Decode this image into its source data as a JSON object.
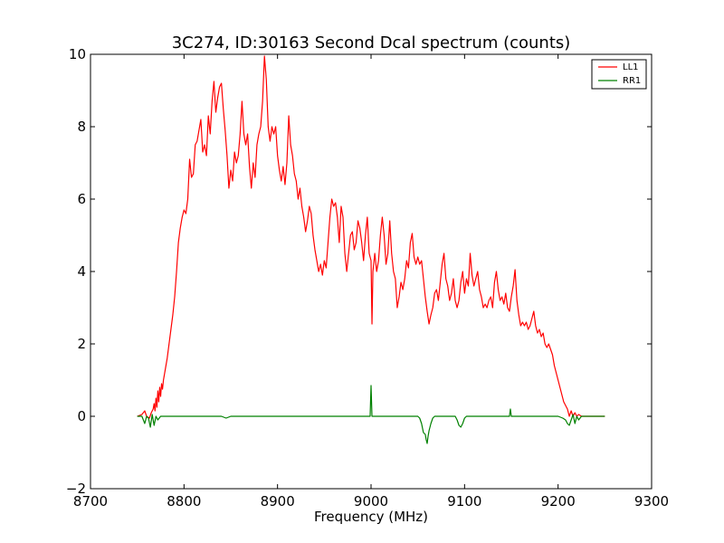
{
  "chart_data": {
    "type": "line",
    "title": "3C274, ID:30163 Second Dcal spectrum (counts)",
    "xlabel": "Frequency (MHz)",
    "ylabel": "",
    "xlim": [
      8700,
      9300
    ],
    "ylim": [
      -2,
      10
    ],
    "x_ticks": [
      8700,
      8800,
      8900,
      9000,
      9100,
      9200,
      9300
    ],
    "y_ticks": [
      -2,
      0,
      2,
      4,
      6,
      8,
      10
    ],
    "x_tick_labels": [
      "8700",
      "8800",
      "8900",
      "9000",
      "9100",
      "9200",
      "9300"
    ],
    "y_tick_labels": [
      "−2",
      "0",
      "2",
      "4",
      "6",
      "8",
      "10"
    ],
    "grid": false,
    "legend_position": "top-right",
    "series": [
      {
        "name": "LL1",
        "color": "#ff0000",
        "points": [
          [
            8750,
            0.0
          ],
          [
            8755,
            0.05
          ],
          [
            8758,
            0.15
          ],
          [
            8760,
            0.0
          ],
          [
            8763,
            -0.05
          ],
          [
            8765,
            0.1
          ],
          [
            8767,
            0.2
          ],
          [
            8768,
            0.35
          ],
          [
            8769,
            0.15
          ],
          [
            8770,
            0.5
          ],
          [
            8771,
            0.25
          ],
          [
            8772,
            0.7
          ],
          [
            8773,
            0.4
          ],
          [
            8774,
            0.8
          ],
          [
            8775,
            0.55
          ],
          [
            8776,
            0.9
          ],
          [
            8777,
            0.75
          ],
          [
            8778,
            1.0
          ],
          [
            8780,
            1.3
          ],
          [
            8782,
            1.6
          ],
          [
            8784,
            2.0
          ],
          [
            8786,
            2.4
          ],
          [
            8788,
            2.8
          ],
          [
            8790,
            3.3
          ],
          [
            8792,
            4.0
          ],
          [
            8794,
            4.8
          ],
          [
            8796,
            5.2
          ],
          [
            8798,
            5.5
          ],
          [
            8800,
            5.7
          ],
          [
            8802,
            5.6
          ],
          [
            8804,
            6.0
          ],
          [
            8806,
            7.1
          ],
          [
            8808,
            6.6
          ],
          [
            8810,
            6.7
          ],
          [
            8812,
            7.5
          ],
          [
            8814,
            7.6
          ],
          [
            8816,
            7.9
          ],
          [
            8818,
            8.2
          ],
          [
            8820,
            7.3
          ],
          [
            8822,
            7.5
          ],
          [
            8824,
            7.2
          ],
          [
            8826,
            8.3
          ],
          [
            8828,
            7.8
          ],
          [
            8830,
            8.7
          ],
          [
            8832,
            9.25
          ],
          [
            8834,
            8.4
          ],
          [
            8836,
            8.8
          ],
          [
            8838,
            9.1
          ],
          [
            8840,
            9.2
          ],
          [
            8842,
            8.5
          ],
          [
            8844,
            7.9
          ],
          [
            8846,
            7.2
          ],
          [
            8848,
            6.3
          ],
          [
            8850,
            6.8
          ],
          [
            8852,
            6.5
          ],
          [
            8854,
            7.3
          ],
          [
            8856,
            7.0
          ],
          [
            8858,
            7.2
          ],
          [
            8860,
            7.8
          ],
          [
            8862,
            8.7
          ],
          [
            8864,
            7.8
          ],
          [
            8866,
            7.5
          ],
          [
            8868,
            7.8
          ],
          [
            8870,
            6.9
          ],
          [
            8872,
            6.3
          ],
          [
            8874,
            7.0
          ],
          [
            8876,
            6.6
          ],
          [
            8878,
            7.5
          ],
          [
            8880,
            7.8
          ],
          [
            8882,
            8.0
          ],
          [
            8884,
            8.7
          ],
          [
            8886,
            9.95
          ],
          [
            8888,
            9.3
          ],
          [
            8890,
            8.0
          ],
          [
            8892,
            7.6
          ],
          [
            8894,
            8.0
          ],
          [
            8896,
            7.8
          ],
          [
            8898,
            8.0
          ],
          [
            8900,
            7.2
          ],
          [
            8902,
            6.8
          ],
          [
            8904,
            6.5
          ],
          [
            8906,
            6.9
          ],
          [
            8908,
            6.4
          ],
          [
            8910,
            7.0
          ],
          [
            8912,
            8.3
          ],
          [
            8914,
            7.5
          ],
          [
            8916,
            7.2
          ],
          [
            8918,
            6.7
          ],
          [
            8920,
            6.5
          ],
          [
            8922,
            6.0
          ],
          [
            8924,
            6.3
          ],
          [
            8926,
            5.8
          ],
          [
            8928,
            5.5
          ],
          [
            8930,
            5.1
          ],
          [
            8932,
            5.4
          ],
          [
            8934,
            5.8
          ],
          [
            8936,
            5.6
          ],
          [
            8938,
            5.0
          ],
          [
            8940,
            4.6
          ],
          [
            8942,
            4.3
          ],
          [
            8944,
            4.0
          ],
          [
            8946,
            4.2
          ],
          [
            8948,
            3.9
          ],
          [
            8950,
            4.3
          ],
          [
            8952,
            4.1
          ],
          [
            8954,
            4.8
          ],
          [
            8956,
            5.5
          ],
          [
            8958,
            6.0
          ],
          [
            8960,
            5.8
          ],
          [
            8962,
            5.9
          ],
          [
            8964,
            5.5
          ],
          [
            8966,
            4.8
          ],
          [
            8968,
            5.8
          ],
          [
            8970,
            5.5
          ],
          [
            8972,
            4.5
          ],
          [
            8974,
            4.0
          ],
          [
            8976,
            4.5
          ],
          [
            8978,
            5.0
          ],
          [
            8980,
            5.1
          ],
          [
            8982,
            4.6
          ],
          [
            8984,
            4.8
          ],
          [
            8986,
            5.4
          ],
          [
            8988,
            5.2
          ],
          [
            8990,
            4.8
          ],
          [
            8992,
            4.3
          ],
          [
            8994,
            5.0
          ],
          [
            8996,
            5.5
          ],
          [
            8998,
            4.5
          ],
          [
            9000,
            4.3
          ],
          [
            9001,
            2.55
          ],
          [
            9002,
            4.0
          ],
          [
            9004,
            4.5
          ],
          [
            9006,
            4.0
          ],
          [
            9008,
            4.3
          ],
          [
            9010,
            5.0
          ],
          [
            9012,
            5.5
          ],
          [
            9014,
            5.0
          ],
          [
            9016,
            4.2
          ],
          [
            9018,
            4.5
          ],
          [
            9020,
            5.4
          ],
          [
            9022,
            4.5
          ],
          [
            9024,
            4.0
          ],
          [
            9026,
            3.8
          ],
          [
            9028,
            3.0
          ],
          [
            9030,
            3.3
          ],
          [
            9032,
            3.7
          ],
          [
            9034,
            3.5
          ],
          [
            9036,
            3.8
          ],
          [
            9038,
            4.3
          ],
          [
            9040,
            4.1
          ],
          [
            9042,
            4.8
          ],
          [
            9044,
            5.05
          ],
          [
            9046,
            4.4
          ],
          [
            9048,
            4.2
          ],
          [
            9050,
            4.4
          ],
          [
            9052,
            4.2
          ],
          [
            9054,
            4.3
          ],
          [
            9056,
            3.8
          ],
          [
            9058,
            3.3
          ],
          [
            9060,
            2.9
          ],
          [
            9062,
            2.55
          ],
          [
            9064,
            2.8
          ],
          [
            9066,
            3.0
          ],
          [
            9068,
            3.4
          ],
          [
            9070,
            3.5
          ],
          [
            9072,
            3.2
          ],
          [
            9074,
            3.7
          ],
          [
            9076,
            4.2
          ],
          [
            9078,
            4.5
          ],
          [
            9080,
            3.8
          ],
          [
            9082,
            3.6
          ],
          [
            9084,
            3.2
          ],
          [
            9086,
            3.4
          ],
          [
            9088,
            3.8
          ],
          [
            9090,
            3.2
          ],
          [
            9092,
            3.0
          ],
          [
            9094,
            3.2
          ],
          [
            9096,
            3.7
          ],
          [
            9098,
            4.0
          ],
          [
            9100,
            3.4
          ],
          [
            9102,
            3.8
          ],
          [
            9104,
            3.6
          ],
          [
            9106,
            4.5
          ],
          [
            9108,
            3.9
          ],
          [
            9110,
            3.6
          ],
          [
            9112,
            3.8
          ],
          [
            9114,
            4.0
          ],
          [
            9116,
            3.5
          ],
          [
            9118,
            3.3
          ],
          [
            9120,
            3.0
          ],
          [
            9122,
            3.1
          ],
          [
            9124,
            3.0
          ],
          [
            9126,
            3.2
          ],
          [
            9128,
            3.3
          ],
          [
            9130,
            3.0
          ],
          [
            9132,
            3.7
          ],
          [
            9134,
            4.0
          ],
          [
            9136,
            3.5
          ],
          [
            9138,
            3.2
          ],
          [
            9140,
            3.3
          ],
          [
            9142,
            3.1
          ],
          [
            9144,
            3.4
          ],
          [
            9146,
            3.0
          ],
          [
            9148,
            2.9
          ],
          [
            9150,
            3.3
          ],
          [
            9152,
            3.6
          ],
          [
            9154,
            4.05
          ],
          [
            9156,
            3.2
          ],
          [
            9158,
            2.8
          ],
          [
            9160,
            2.5
          ],
          [
            9162,
            2.6
          ],
          [
            9164,
            2.5
          ],
          [
            9166,
            2.6
          ],
          [
            9168,
            2.4
          ],
          [
            9170,
            2.5
          ],
          [
            9172,
            2.7
          ],
          [
            9174,
            2.9
          ],
          [
            9176,
            2.5
          ],
          [
            9178,
            2.3
          ],
          [
            9180,
            2.4
          ],
          [
            9182,
            2.2
          ],
          [
            9184,
            2.3
          ],
          [
            9186,
            2.0
          ],
          [
            9188,
            1.9
          ],
          [
            9190,
            2.0
          ],
          [
            9192,
            1.85
          ],
          [
            9194,
            1.7
          ],
          [
            9196,
            1.4
          ],
          [
            9198,
            1.2
          ],
          [
            9200,
            1.0
          ],
          [
            9202,
            0.8
          ],
          [
            9204,
            0.6
          ],
          [
            9206,
            0.4
          ],
          [
            9208,
            0.3
          ],
          [
            9210,
            0.2
          ],
          [
            9212,
            0.0
          ],
          [
            9214,
            0.15
          ],
          [
            9216,
            0.0
          ],
          [
            9218,
            0.1
          ],
          [
            9220,
            0.0
          ],
          [
            9222,
            0.05
          ],
          [
            9225,
            0.0
          ],
          [
            9230,
            0.0
          ],
          [
            9240,
            0.0
          ],
          [
            9250,
            0.0
          ]
        ]
      },
      {
        "name": "RR1",
        "color": "#008000",
        "points": [
          [
            8750,
            0.0
          ],
          [
            8755,
            0.0
          ],
          [
            8758,
            -0.2
          ],
          [
            8760,
            0.0
          ],
          [
            8762,
            -0.05
          ],
          [
            8764,
            -0.3
          ],
          [
            8766,
            0.05
          ],
          [
            8768,
            -0.25
          ],
          [
            8770,
            0.0
          ],
          [
            8772,
            -0.1
          ],
          [
            8775,
            0.0
          ],
          [
            8780,
            0.0
          ],
          [
            8800,
            0.0
          ],
          [
            8820,
            0.0
          ],
          [
            8840,
            0.0
          ],
          [
            8845,
            -0.05
          ],
          [
            8850,
            0.0
          ],
          [
            8870,
            0.0
          ],
          [
            8900,
            0.0
          ],
          [
            8950,
            0.0
          ],
          [
            8999,
            0.0
          ],
          [
            9000,
            0.85
          ],
          [
            9001,
            0.0
          ],
          [
            9020,
            0.0
          ],
          [
            9050,
            0.0
          ],
          [
            9052,
            -0.05
          ],
          [
            9054,
            -0.2
          ],
          [
            9056,
            -0.45
          ],
          [
            9058,
            -0.5
          ],
          [
            9059,
            -0.65
          ],
          [
            9060,
            -0.75
          ],
          [
            9061,
            -0.55
          ],
          [
            9062,
            -0.4
          ],
          [
            9064,
            -0.2
          ],
          [
            9066,
            -0.05
          ],
          [
            9068,
            0.0
          ],
          [
            9080,
            0.0
          ],
          [
            9090,
            0.0
          ],
          [
            9092,
            -0.1
          ],
          [
            9094,
            -0.25
          ],
          [
            9096,
            -0.3
          ],
          [
            9098,
            -0.2
          ],
          [
            9100,
            -0.05
          ],
          [
            9102,
            0.0
          ],
          [
            9120,
            0.0
          ],
          [
            9148,
            0.0
          ],
          [
            9149,
            0.2
          ],
          [
            9150,
            0.0
          ],
          [
            9180,
            0.0
          ],
          [
            9200,
            0.0
          ],
          [
            9205,
            -0.05
          ],
          [
            9208,
            -0.1
          ],
          [
            9210,
            -0.2
          ],
          [
            9212,
            -0.25
          ],
          [
            9214,
            -0.1
          ],
          [
            9216,
            0.05
          ],
          [
            9218,
            -0.2
          ],
          [
            9220,
            0.0
          ],
          [
            9222,
            -0.1
          ],
          [
            9225,
            0.0
          ],
          [
            9230,
            0.0
          ],
          [
            9240,
            0.0
          ],
          [
            9250,
            0.0
          ]
        ]
      }
    ]
  }
}
